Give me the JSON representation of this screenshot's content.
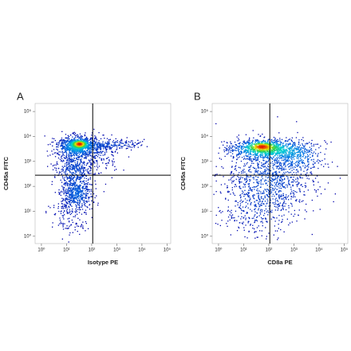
{
  "chart_data": [
    {
      "type": "scatter",
      "panel_label": "A",
      "x_label": "Isotype PE",
      "y_label": "CD45a FITC",
      "log_x": true,
      "log_y": true,
      "xlim": [
        0.56,
        140000
      ],
      "ylim": [
        0.51,
        210000
      ],
      "xticks": [
        {
          "value": 1,
          "label": "10⁰"
        },
        {
          "value": 10,
          "label": "10¹"
        },
        {
          "value": 100,
          "label": "10²"
        },
        {
          "value": 1000,
          "label": "10³"
        },
        {
          "value": 10000,
          "label": "10⁴"
        },
        {
          "value": 100000,
          "label": "10⁵"
        }
      ],
      "yticks": [
        {
          "value": 1,
          "label": "10⁰"
        },
        {
          "value": 10,
          "label": "10¹"
        },
        {
          "value": 100,
          "label": "10²"
        },
        {
          "value": 1000,
          "label": "10³"
        },
        {
          "value": 10000,
          "label": "10⁴"
        },
        {
          "value": 100000,
          "label": "10⁵"
        }
      ],
      "gate": {
        "x": 110,
        "y": 280
      }
    },
    {
      "type": "scatter",
      "panel_label": "B",
      "x_label": "CD8a PE",
      "y_label": "CD45a FITC",
      "log_x": true,
      "log_y": true,
      "xlim": [
        0.56,
        140000
      ],
      "ylim": [
        0.51,
        210000
      ],
      "xticks": [
        {
          "value": 1,
          "label": "10⁰"
        },
        {
          "value": 10,
          "label": "10¹"
        },
        {
          "value": 100,
          "label": "10²"
        },
        {
          "value": 1000,
          "label": "10³"
        },
        {
          "value": 10000,
          "label": "10⁴"
        },
        {
          "value": 100000,
          "label": "10⁵"
        }
      ],
      "yticks": [
        {
          "value": 1,
          "label": "10⁰"
        },
        {
          "value": 10,
          "label": "10¹"
        },
        {
          "value": 100,
          "label": "10²"
        },
        {
          "value": 1000,
          "label": "10³"
        },
        {
          "value": 10000,
          "label": "10⁴"
        },
        {
          "value": 100000,
          "label": "10⁵"
        }
      ],
      "gate": {
        "x": 110,
        "y": 280
      }
    }
  ]
}
